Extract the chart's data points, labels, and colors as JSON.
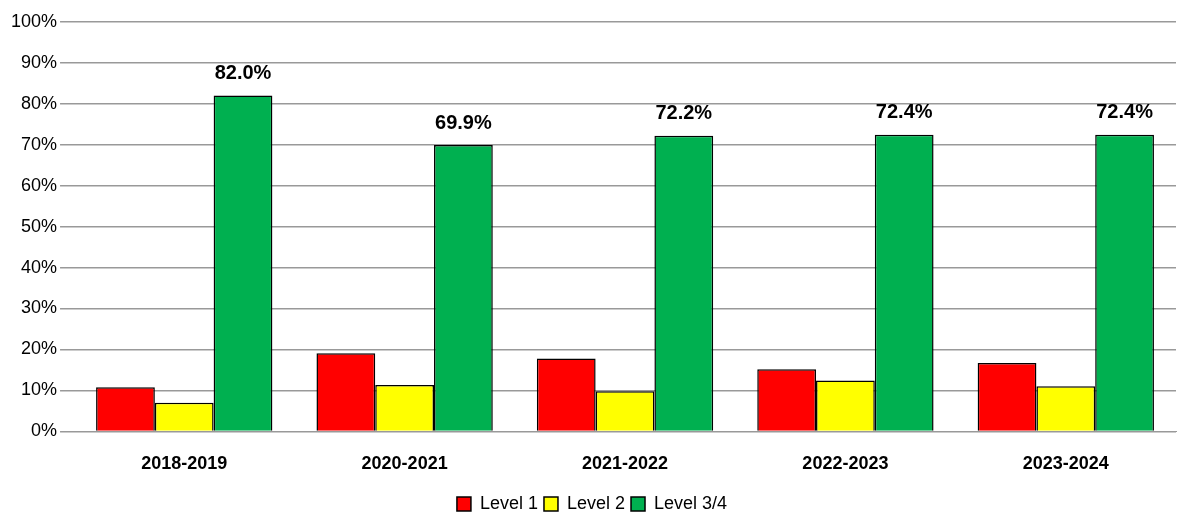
{
  "chart_data": {
    "type": "bar",
    "categories": [
      "2018-2019",
      "2020-2021",
      "2021-2022",
      "2022-2023",
      "2023-2024"
    ],
    "series": [
      {
        "name": "Level 1",
        "color": "#ff0000",
        "values": [
          10.8,
          19.1,
          17.8,
          15.2,
          16.7
        ]
      },
      {
        "name": "Level 2",
        "color": "#ffff00",
        "values": [
          7.0,
          11.3,
          9.8,
          12.4,
          11.0
        ]
      },
      {
        "name": "Level 3/4",
        "color": "#00b050",
        "values": [
          82.0,
          69.9,
          72.2,
          72.4,
          72.4
        ],
        "value_labels": [
          "82.0%",
          "69.9%",
          "72.2%",
          "72.4%",
          "72.4%"
        ]
      }
    ],
    "ylim": [
      0,
      100
    ],
    "yticks": [
      {
        "value": 0,
        "label": "0%"
      },
      {
        "value": 10,
        "label": "10%"
      },
      {
        "value": 20,
        "label": "20%"
      },
      {
        "value": 30,
        "label": "30%"
      },
      {
        "value": 40,
        "label": "40%"
      },
      {
        "value": 50,
        "label": "50%"
      },
      {
        "value": 60,
        "label": "60%"
      },
      {
        "value": 70,
        "label": "70%"
      },
      {
        "value": 80,
        "label": "80%"
      },
      {
        "value": 90,
        "label": "90%"
      },
      {
        "value": 100,
        "label": "100%"
      }
    ],
    "grid": "y",
    "legend": "bottom"
  }
}
